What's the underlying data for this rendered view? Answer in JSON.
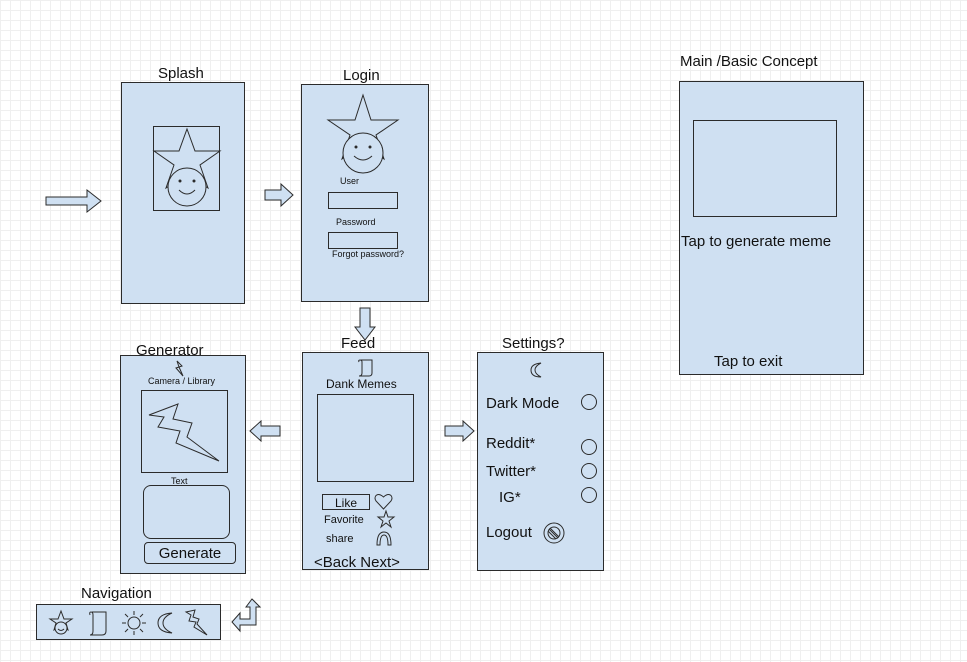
{
  "frames": {
    "splash": {
      "title": "Splash"
    },
    "login": {
      "title": "Login",
      "user_label": "User",
      "password_label": "Password",
      "forgot_label": "Forgot password?"
    },
    "main": {
      "title": "Main /Basic Concept",
      "tap_generate": "Tap to generate meme",
      "tap_exit": "Tap to exit"
    },
    "generator": {
      "title": "Generator",
      "camera_label": "Camera / Library",
      "text_label": "Text",
      "generate_button": "Generate"
    },
    "feed": {
      "title": "Feed",
      "header": "Dank Memes",
      "like_button": "Like",
      "favorite_label": "Favorite",
      "share_label": "share",
      "back_next": "<Back Next>"
    },
    "settings": {
      "title": "Settings?",
      "dark_mode": "Dark Mode",
      "reddit": "Reddit*",
      "twitter": "Twitter*",
      "ig": "IG*",
      "logout": "Logout"
    },
    "navigation": {
      "title": "Navigation",
      "icons": [
        "star-face-icon",
        "scroll-icon",
        "sun-icon",
        "moon-icon",
        "lightning-icon"
      ]
    }
  },
  "colors": {
    "frame_fill": "#cfe0f2",
    "stroke": "#2b2b2b",
    "grid": "#efefef"
  }
}
